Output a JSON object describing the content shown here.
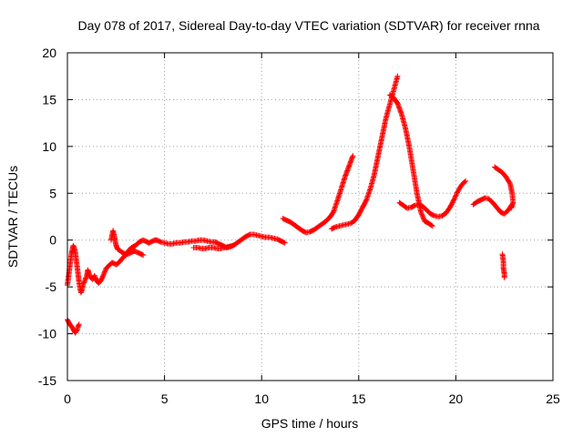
{
  "chart_data": {
    "type": "scatter",
    "marker": "plus",
    "title": "Day 078 of 2017, Sidereal Day-to-day VTEC variation (SDTVAR) for receiver rnna",
    "xlabel": "GPS time / hours",
    "ylabel": "SDTVAR / TECUs",
    "xlim": [
      0,
      25
    ],
    "ylim": [
      -15,
      20
    ],
    "xticks": [
      0,
      5,
      10,
      15,
      20,
      25
    ],
    "xtick_labels": [
      "0",
      "5",
      "10",
      "15",
      "20",
      "25"
    ],
    "yticks": [
      -15,
      -10,
      -5,
      0,
      5,
      10,
      15,
      20
    ],
    "ytick_labels": [
      "-15",
      "-10",
      "-5",
      "0",
      "5",
      "10",
      "15",
      "20"
    ],
    "grid": true,
    "series": [
      {
        "name": "SDTVAR",
        "color": "#ff0000",
        "segments": [
          [
            [
              0.0,
              -4.8
            ],
            [
              0.05,
              -4.0
            ],
            [
              0.1,
              -3.2
            ],
            [
              0.15,
              -2.4
            ],
            [
              0.2,
              -1.6
            ],
            [
              0.25,
              -1.0
            ],
            [
              0.3,
              -0.6
            ],
            [
              0.35,
              -0.8
            ],
            [
              0.4,
              -1.2
            ],
            [
              0.45,
              -2.0
            ],
            [
              0.5,
              -2.8
            ],
            [
              0.55,
              -3.6
            ],
            [
              0.6,
              -4.5
            ],
            [
              0.65,
              -5.2
            ],
            [
              0.7,
              -5.6
            ],
            [
              0.75,
              -5.3
            ],
            [
              0.8,
              -4.8
            ],
            [
              0.9,
              -4.3
            ],
            [
              1.0,
              -3.8
            ],
            [
              1.05,
              -3.2
            ],
            [
              1.1,
              -3.5
            ],
            [
              1.2,
              -4.0
            ],
            [
              1.3,
              -4.2
            ],
            [
              1.4,
              -3.8
            ],
            [
              1.5,
              -4.3
            ],
            [
              1.6,
              -4.6
            ],
            [
              1.7,
              -4.4
            ],
            [
              1.8,
              -4.0
            ],
            [
              1.9,
              -3.5
            ],
            [
              2.0,
              -3.0
            ],
            [
              2.1,
              -2.8
            ],
            [
              2.2,
              -2.6
            ],
            [
              2.3,
              -2.4
            ],
            [
              2.4,
              -2.5
            ],
            [
              2.5,
              -2.6
            ],
            [
              2.6,
              -2.5
            ],
            [
              2.7,
              -2.3
            ],
            [
              2.8,
              -2.0
            ],
            [
              2.9,
              -1.8
            ],
            [
              3.0,
              -1.6
            ],
            [
              3.1,
              -1.4
            ],
            [
              3.2,
              -1.2
            ]
          ],
          [
            [
              2.25,
              0.0
            ],
            [
              2.3,
              0.5
            ],
            [
              2.35,
              1.0
            ],
            [
              2.4,
              0.6
            ],
            [
              2.45,
              0.0
            ],
            [
              2.5,
              -0.5
            ],
            [
              2.55,
              -0.8
            ],
            [
              2.6,
              -1.0
            ],
            [
              2.7,
              -1.1
            ],
            [
              2.8,
              -1.3
            ],
            [
              2.9,
              -1.4
            ],
            [
              3.0,
              -1.5
            ],
            [
              3.1,
              -1.5
            ],
            [
              3.2,
              -1.4
            ],
            [
              3.3,
              -1.3
            ],
            [
              3.4,
              -1.2
            ],
            [
              3.5,
              -1.2
            ],
            [
              3.6,
              -1.3
            ],
            [
              3.7,
              -1.4
            ],
            [
              3.8,
              -1.5
            ],
            [
              3.9,
              -1.6
            ]
          ],
          [
            [
              3.0,
              -1.6
            ],
            [
              3.1,
              -1.3
            ],
            [
              3.2,
              -1.0
            ],
            [
              3.3,
              -0.8
            ],
            [
              3.4,
              -0.7
            ],
            [
              3.5,
              -0.6
            ],
            [
              3.6,
              -0.4
            ],
            [
              3.7,
              -0.2
            ],
            [
              3.8,
              -0.1
            ],
            [
              3.9,
              0.0
            ],
            [
              4.0,
              -0.1
            ],
            [
              4.1,
              -0.2
            ],
            [
              4.2,
              -0.3
            ],
            [
              4.3,
              -0.2
            ],
            [
              4.4,
              -0.1
            ],
            [
              4.5,
              0.0
            ],
            [
              4.6,
              0.0
            ],
            [
              4.8,
              -0.2
            ],
            [
              5.0,
              -0.3
            ],
            [
              5.2,
              -0.4
            ],
            [
              5.4,
              -0.4
            ],
            [
              5.6,
              -0.3
            ],
            [
              5.8,
              -0.3
            ],
            [
              6.0,
              -0.2
            ],
            [
              6.2,
              -0.2
            ],
            [
              6.4,
              -0.1
            ],
            [
              6.6,
              -0.1
            ],
            [
              6.8,
              0.0
            ],
            [
              7.0,
              0.0
            ],
            [
              7.2,
              -0.1
            ],
            [
              7.4,
              -0.2
            ],
            [
              7.6,
              -0.2
            ],
            [
              7.8,
              -0.4
            ],
            [
              8.0,
              -0.6
            ],
            [
              8.2,
              -0.8
            ],
            [
              8.4,
              -0.7
            ],
            [
              8.6,
              -0.5
            ],
            [
              8.8,
              -0.2
            ],
            [
              9.0,
              0.1
            ],
            [
              9.2,
              0.4
            ],
            [
              9.4,
              0.6
            ],
            [
              9.6,
              0.6
            ],
            [
              9.8,
              0.5
            ],
            [
              10.0,
              0.4
            ],
            [
              10.2,
              0.3
            ],
            [
              10.4,
              0.3
            ],
            [
              10.6,
              0.2
            ],
            [
              10.8,
              0.1
            ],
            [
              11.0,
              -0.1
            ],
            [
              11.2,
              -0.3
            ]
          ],
          [
            [
              6.5,
              -0.8
            ],
            [
              6.7,
              -0.8
            ],
            [
              6.9,
              -0.9
            ],
            [
              7.1,
              -0.9
            ],
            [
              7.3,
              -0.8
            ],
            [
              7.5,
              -0.8
            ],
            [
              7.7,
              -0.9
            ],
            [
              7.9,
              -0.9
            ],
            [
              8.1,
              -0.8
            ],
            [
              8.3,
              -0.7
            ],
            [
              8.5,
              -0.6
            ]
          ],
          [
            [
              11.1,
              2.3
            ],
            [
              11.3,
              2.1
            ],
            [
              11.5,
              1.9
            ],
            [
              11.7,
              1.6
            ],
            [
              11.9,
              1.3
            ],
            [
              12.1,
              1.0
            ],
            [
              12.3,
              0.8
            ],
            [
              12.5,
              0.9
            ],
            [
              12.7,
              1.1
            ],
            [
              12.9,
              1.4
            ],
            [
              13.1,
              1.7
            ],
            [
              13.3,
              2.0
            ],
            [
              13.5,
              2.4
            ],
            [
              13.7,
              3.0
            ],
            [
              13.9,
              4.2
            ],
            [
              14.1,
              5.5
            ],
            [
              14.3,
              6.8
            ],
            [
              14.5,
              7.9
            ],
            [
              14.7,
              9.0
            ]
          ],
          [
            [
              13.6,
              1.2
            ],
            [
              13.8,
              1.4
            ],
            [
              14.0,
              1.5
            ],
            [
              14.2,
              1.6
            ],
            [
              14.4,
              1.7
            ],
            [
              14.6,
              1.8
            ],
            [
              14.8,
              2.1
            ],
            [
              15.0,
              2.7
            ],
            [
              15.2,
              3.5
            ],
            [
              15.4,
              4.3
            ],
            [
              15.6,
              5.5
            ],
            [
              15.8,
              7.0
            ],
            [
              16.0,
              9.0
            ],
            [
              16.2,
              11.0
            ],
            [
              16.4,
              13.0
            ],
            [
              16.6,
              14.5
            ],
            [
              16.8,
              16.0
            ],
            [
              17.0,
              17.5
            ]
          ],
          [
            [
              16.6,
              15.5
            ],
            [
              16.8,
              15.2
            ],
            [
              17.0,
              14.6
            ],
            [
              17.2,
              13.5
            ],
            [
              17.4,
              12.0
            ],
            [
              17.6,
              10.0
            ],
            [
              17.8,
              7.5
            ],
            [
              18.0,
              5.0
            ],
            [
              18.2,
              3.0
            ],
            [
              18.4,
              2.0
            ],
            [
              18.6,
              1.8
            ],
            [
              18.8,
              1.5
            ]
          ],
          [
            [
              17.1,
              4.0
            ],
            [
              17.3,
              3.7
            ],
            [
              17.5,
              3.4
            ],
            [
              17.7,
              3.5
            ],
            [
              17.9,
              3.7
            ],
            [
              18.1,
              3.8
            ],
            [
              18.3,
              3.6
            ],
            [
              18.5,
              3.2
            ],
            [
              18.7,
              2.8
            ],
            [
              18.9,
              2.6
            ],
            [
              19.1,
              2.5
            ],
            [
              19.3,
              2.6
            ],
            [
              19.5,
              2.9
            ],
            [
              19.7,
              3.5
            ],
            [
              19.9,
              4.3
            ],
            [
              20.1,
              5.2
            ],
            [
              20.3,
              5.9
            ],
            [
              20.5,
              6.3
            ]
          ],
          [
            [
              20.9,
              3.8
            ],
            [
              21.1,
              4.1
            ],
            [
              21.3,
              4.3
            ],
            [
              21.5,
              4.5
            ],
            [
              21.7,
              4.4
            ],
            [
              21.9,
              4.0
            ],
            [
              22.1,
              3.5
            ],
            [
              22.3,
              3.0
            ],
            [
              22.5,
              2.8
            ],
            [
              22.7,
              3.2
            ],
            [
              22.9,
              3.8
            ]
          ],
          [
            [
              22.0,
              7.8
            ],
            [
              22.2,
              7.5
            ],
            [
              22.4,
              7.2
            ],
            [
              22.6,
              6.7
            ],
            [
              22.8,
              6.0
            ],
            [
              22.9,
              5.0
            ],
            [
              22.95,
              4.0
            ],
            [
              22.85,
              3.4
            ]
          ],
          [
            [
              0.0,
              -8.5
            ],
            [
              0.1,
              -8.9
            ],
            [
              0.2,
              -9.2
            ],
            [
              0.3,
              -9.5
            ],
            [
              0.4,
              -9.9
            ],
            [
              0.5,
              -9.6
            ],
            [
              0.55,
              -9.2
            ],
            [
              0.6,
              -9.0
            ]
          ],
          [
            [
              22.4,
              -1.5
            ],
            [
              22.45,
              -2.3
            ],
            [
              22.45,
              -3.0
            ],
            [
              22.5,
              -3.6
            ],
            [
              22.5,
              -4.0
            ]
          ]
        ]
      }
    ]
  }
}
